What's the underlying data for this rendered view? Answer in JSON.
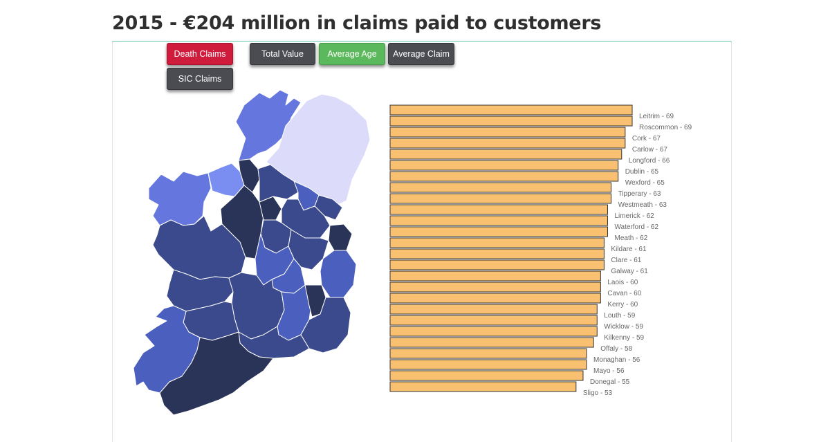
{
  "title": "2015 - €204 million in claims paid to customers",
  "buttons": [
    {
      "label": "Death Claims",
      "style": "red",
      "active": true
    },
    {
      "label": "Total Value",
      "style": "dark",
      "active": false
    },
    {
      "label": "Average Age",
      "style": "green",
      "active": false
    },
    {
      "label": "Average Claim",
      "style": "dark",
      "active": false
    },
    {
      "label": "SIC Claims",
      "style": "dark",
      "active": false
    }
  ],
  "colors": {
    "bar_fill": "#f8c070",
    "bar_stroke": "#333333",
    "label": "#666666",
    "accent_line": "#5cc7a6",
    "map_very_dark": "#2a3358",
    "map_dark": "#3b4a8c",
    "map_medium": "#4b5fbf",
    "map_light": "#6577df",
    "map_lighter": "#7a8ef2",
    "map_northern_ireland": "#dcdcfa"
  },
  "chart_data": {
    "type": "bar",
    "orientation": "horizontal",
    "metric": "Average Age",
    "sort": "descending",
    "label_format": "{name} - {value}",
    "categories": [
      "Leitrim",
      "Roscommon",
      "Cork",
      "Carlow",
      "Longford",
      "Dublin",
      "Wexford",
      "Tipperary",
      "Westmeath",
      "Limerick",
      "Waterford",
      "Meath",
      "Kildare",
      "Clare",
      "Galway",
      "Laois",
      "Cavan",
      "Kerry",
      "Louth",
      "Wicklow",
      "Kilkenny",
      "Offaly",
      "Monaghan",
      "Mayo",
      "Donegal",
      "Sligo"
    ],
    "values": [
      69,
      69,
      67,
      67,
      66,
      65,
      65,
      63,
      63,
      62,
      62,
      62,
      61,
      61,
      61,
      60,
      60,
      60,
      59,
      59,
      59,
      58,
      56,
      56,
      55,
      53
    ],
    "labels": [
      "Leitrim - 69",
      "Roscommon - 69",
      "Cork - 67",
      "Carlow - 67",
      "Longford - 66",
      "Dublin - 65",
      "Wexford - 65",
      "Tipperary - 63",
      "Westmeath - 63",
      "Limerick - 62",
      "Waterford - 62",
      "Meath - 62",
      "Kildare - 61",
      "Clare - 61",
      "Galway - 61",
      "Laois - 60",
      "Cavan - 60",
      "Kerry - 60",
      "Louth - 59",
      "Wicklow - 59",
      "Kilkenny - 59",
      "Offaly - 58",
      "Monaghan - 56",
      "Mayo - 56",
      "Donegal - 55",
      "Sligo - 53"
    ],
    "xlim": [
      0,
      69
    ],
    "grid": false,
    "legend": "none"
  },
  "map_data": {
    "type": "choropleth",
    "regions": [
      {
        "name": "Donegal",
        "shade": "map_light"
      },
      {
        "name": "Northern Ireland",
        "shade": "map_northern_ireland"
      },
      {
        "name": "Mayo",
        "shade": "map_light"
      },
      {
        "name": "Sligo",
        "shade": "map_lighter"
      },
      {
        "name": "Leitrim",
        "shade": "map_very_dark"
      },
      {
        "name": "Roscommon",
        "shade": "map_very_dark"
      },
      {
        "name": "Longford",
        "shade": "map_very_dark"
      },
      {
        "name": "Cavan",
        "shade": "map_dark"
      },
      {
        "name": "Monaghan",
        "shade": "map_medium"
      },
      {
        "name": "Louth",
        "shade": "map_dark"
      },
      {
        "name": "Meath",
        "shade": "map_dark"
      },
      {
        "name": "Westmeath",
        "shade": "map_dark"
      },
      {
        "name": "Dublin",
        "shade": "map_very_dark"
      },
      {
        "name": "Galway",
        "shade": "map_dark"
      },
      {
        "name": "Offaly",
        "shade": "map_medium"
      },
      {
        "name": "Kildare",
        "shade": "map_dark"
      },
      {
        "name": "Wicklow",
        "shade": "map_medium"
      },
      {
        "name": "Laois",
        "shade": "map_medium"
      },
      {
        "name": "Clare",
        "shade": "map_dark"
      },
      {
        "name": "Tipperary",
        "shade": "map_dark"
      },
      {
        "name": "Kilkenny",
        "shade": "map_medium"
      },
      {
        "name": "Carlow",
        "shade": "map_very_dark"
      },
      {
        "name": "Wexford",
        "shade": "map_dark"
      },
      {
        "name": "Limerick",
        "shade": "map_dark"
      },
      {
        "name": "Waterford",
        "shade": "map_dark"
      },
      {
        "name": "Kerry",
        "shade": "map_medium"
      },
      {
        "name": "Cork",
        "shade": "map_very_dark"
      }
    ]
  }
}
